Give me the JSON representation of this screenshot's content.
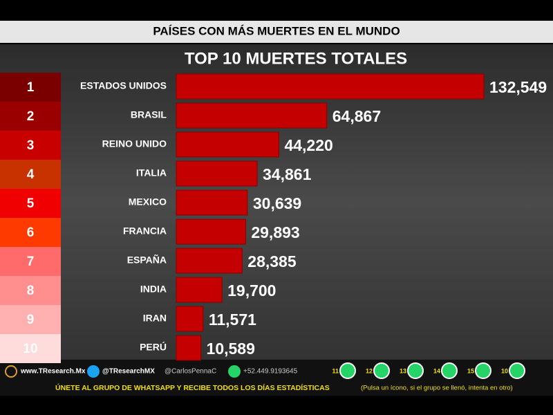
{
  "chart_data": {
    "type": "bar",
    "orientation": "horizontal",
    "title": "PAÍSES CON MÁS MUERTES EN EL MUNDO",
    "subtitle": "TOP 10 MUERTES TOTALES",
    "ranks": [
      "1",
      "2",
      "3",
      "4",
      "5",
      "6",
      "7",
      "8",
      "9",
      "10"
    ],
    "rank_colors": [
      "#7a0000",
      "#9b0000",
      "#c80000",
      "#c83200",
      "#f00000",
      "#ff3a00",
      "#ff6a6a",
      "#ff8f8f",
      "#ffb0b0",
      "#ffdcdc"
    ],
    "categories": [
      "ESTADOS UNIDOS",
      "BRASIL",
      "REINO UNIDO",
      "ITALIA",
      "MEXICO",
      "FRANCIA",
      "ESPAÑA",
      "INDIA",
      "IRAN",
      "PERÚ"
    ],
    "values": [
      132549,
      64867,
      44220,
      34861,
      30639,
      29893,
      28385,
      19700,
      11571,
      10589
    ],
    "value_labels": [
      "132,549",
      "64,867",
      "44,220",
      "34,861",
      "30,639",
      "29,893",
      "28,385",
      "19,700",
      "11,571",
      "10,589"
    ],
    "color": "#c40000",
    "xlim": [
      0,
      140000
    ]
  },
  "footer": {
    "site": "www.TResearch.Mx",
    "twitter": "@TResearchMX",
    "personal": "@CarlosPennaC",
    "phone": "+52.449.9193645",
    "groups": [
      "11",
      "12",
      "13",
      "14",
      "15",
      "10"
    ],
    "call": "ÚNETE AL GRUPO DE WHATSAPP Y RECIBE TODOS LOS DÍAS ESTADÍSTICAS",
    "note": "(Pulsa un ícono, si el grupo se llenó, intenta en otro)"
  }
}
